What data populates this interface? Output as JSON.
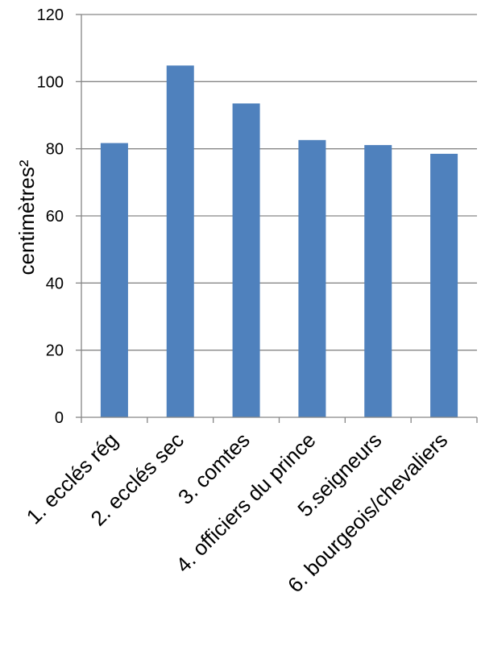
{
  "chart_data": {
    "type": "bar",
    "categories": [
      "1. ecclés rég",
      "2. ecclés sec",
      "3. comtes",
      "4. officiers du prince",
      "5.seigneurs",
      "6. bourgeois/chevaliers"
    ],
    "values": [
      81.7,
      104.8,
      93.5,
      82.6,
      81.1,
      78.5
    ],
    "title": "",
    "xlabel": "",
    "ylabel": "centimètres²",
    "ylim": [
      0,
      120
    ],
    "yticks": [
      "0",
      "20",
      "40",
      "60",
      "80",
      "100",
      "120"
    ],
    "grid": true,
    "legend": "none",
    "bar_color": "#4f81bd",
    "grid_color": "#868686"
  }
}
